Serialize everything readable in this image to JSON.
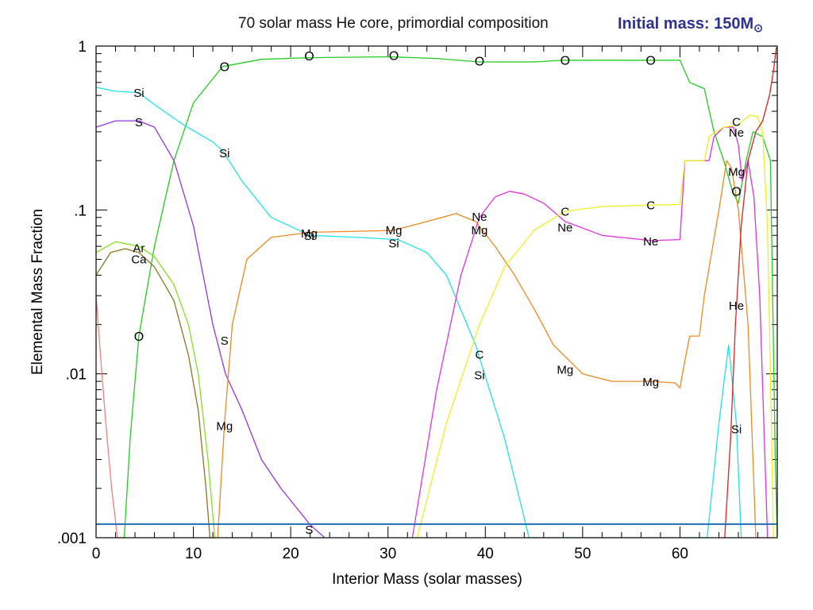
{
  "header": {
    "title": "70 solar mass He core, primordial composition",
    "mass_prefix": "Initial mass: 150M",
    "mass_suffix": "⊙"
  },
  "chart_data": {
    "type": "line",
    "title": "70 solar mass He core, primordial composition",
    "xlabel": "Interior Mass (solar masses)",
    "ylabel": "Elemental Mass Fraction",
    "xlim": [
      0,
      70
    ],
    "ylim": [
      0.001,
      1
    ],
    "yscale": "log",
    "x_ticks": [
      0,
      10,
      20,
      30,
      40,
      50,
      60
    ],
    "x_tick_labels": [
      "0",
      "10",
      "20",
      "30",
      "40",
      "50",
      "60"
    ],
    "y_ticks": [
      0.001,
      0.01,
      0.1,
      1
    ],
    "y_tick_labels": [
      ".001",
      ".01",
      ".1",
      "1"
    ],
    "series": [
      {
        "name": "O",
        "color": "#22cc22",
        "points": [
          [
            2.9,
            0.001
          ],
          [
            3.5,
            0.004
          ],
          [
            4.4,
            0.017
          ],
          [
            6,
            0.06
          ],
          [
            8,
            0.2
          ],
          [
            10,
            0.45
          ],
          [
            13,
            0.75
          ],
          [
            17,
            0.83
          ],
          [
            22,
            0.85
          ],
          [
            30,
            0.86
          ],
          [
            35,
            0.84
          ],
          [
            39.4,
            0.8
          ],
          [
            45,
            0.8
          ],
          [
            48,
            0.82
          ],
          [
            57,
            0.82
          ],
          [
            60,
            0.82
          ],
          [
            61,
            0.6
          ],
          [
            62.5,
            0.55
          ],
          [
            63.5,
            0.3
          ],
          [
            64.5,
            0.2
          ],
          [
            65.4,
            0.13
          ],
          [
            66,
            0.11
          ],
          [
            66.8,
            0.2
          ],
          [
            67.5,
            0.3
          ],
          [
            68.5,
            0.28
          ],
          [
            69.3,
            0.2
          ],
          [
            69.8,
            0.003
          ],
          [
            70,
            0.001
          ]
        ]
      },
      {
        "name": "Si",
        "color": "#22e0e8",
        "points": [
          [
            0,
            0.56
          ],
          [
            2,
            0.53
          ],
          [
            4.4,
            0.52
          ],
          [
            6,
            0.44
          ],
          [
            9,
            0.33
          ],
          [
            12,
            0.26
          ],
          [
            13,
            0.23
          ],
          [
            15,
            0.15
          ],
          [
            18,
            0.09
          ],
          [
            22,
            0.07
          ],
          [
            27,
            0.068
          ],
          [
            31,
            0.066
          ],
          [
            34,
            0.055
          ],
          [
            36,
            0.04
          ],
          [
            39,
            0.015
          ],
          [
            42,
            0.004
          ],
          [
            44.5,
            0.001
          ],
          [
            62.8,
            0.001
          ],
          [
            64,
            0.005
          ],
          [
            65,
            0.015
          ],
          [
            65.8,
            0.005
          ],
          [
            66.3,
            0.001
          ]
        ]
      },
      {
        "name": "S",
        "color": "#9933dd",
        "points": [
          [
            0,
            0.32
          ],
          [
            2,
            0.35
          ],
          [
            4.4,
            0.35
          ],
          [
            6,
            0.32
          ],
          [
            8,
            0.2
          ],
          [
            10,
            0.08
          ],
          [
            12,
            0.02
          ],
          [
            13.3,
            0.01
          ],
          [
            15,
            0.006
          ],
          [
            17,
            0.003
          ],
          [
            19,
            0.002
          ],
          [
            22,
            0.0012
          ],
          [
            23.5,
            0.001
          ]
        ]
      },
      {
        "name": "Ar",
        "color": "#88dd22",
        "points": [
          [
            0,
            0.055
          ],
          [
            2,
            0.064
          ],
          [
            4.4,
            0.06
          ],
          [
            6,
            0.052
          ],
          [
            8,
            0.035
          ],
          [
            9.5,
            0.02
          ],
          [
            10.5,
            0.01
          ],
          [
            11.5,
            0.003
          ],
          [
            12.2,
            0.001
          ]
        ]
      },
      {
        "name": "Ca",
        "color": "#887722",
        "points": [
          [
            0,
            0.04
          ],
          [
            1.5,
            0.055
          ],
          [
            3,
            0.058
          ],
          [
            4.4,
            0.055
          ],
          [
            6,
            0.045
          ],
          [
            8,
            0.028
          ],
          [
            9.5,
            0.013
          ],
          [
            10.5,
            0.006
          ],
          [
            11.3,
            0.002
          ],
          [
            11.7,
            0.001
          ]
        ]
      },
      {
        "name": "Mg",
        "color": "#ee8822",
        "points": [
          [
            12.5,
            0.001
          ],
          [
            13.2,
            0.005
          ],
          [
            14,
            0.02
          ],
          [
            15.5,
            0.05
          ],
          [
            18,
            0.068
          ],
          [
            22,
            0.073
          ],
          [
            30.5,
            0.075
          ],
          [
            34,
            0.085
          ],
          [
            37,
            0.095
          ],
          [
            39,
            0.085
          ],
          [
            41,
            0.06
          ],
          [
            43,
            0.04
          ],
          [
            45,
            0.025
          ],
          [
            47,
            0.015
          ],
          [
            50,
            0.01
          ],
          [
            53,
            0.009
          ],
          [
            57,
            0.009
          ],
          [
            59.5,
            0.0088
          ],
          [
            60,
            0.0082
          ],
          [
            60.5,
            0.012
          ],
          [
            61,
            0.017
          ],
          [
            62,
            0.017
          ],
          [
            62.5,
            0.03
          ],
          [
            64,
            0.1
          ],
          [
            64.8,
            0.2
          ],
          [
            65.3,
            0.18
          ],
          [
            66,
            0.1
          ],
          [
            67,
            0.02
          ],
          [
            67.8,
            0.001
          ]
        ]
      },
      {
        "name": "Ne",
        "color": "#dd33dd",
        "points": [
          [
            32.5,
            0.001
          ],
          [
            35,
            0.008
          ],
          [
            37.5,
            0.04
          ],
          [
            39.4,
            0.09
          ],
          [
            41,
            0.12
          ],
          [
            42.5,
            0.13
          ],
          [
            44,
            0.125
          ],
          [
            46,
            0.11
          ],
          [
            48.2,
            0.085
          ],
          [
            52,
            0.07
          ],
          [
            57,
            0.065
          ],
          [
            60,
            0.066
          ],
          [
            60.5,
            0.2
          ],
          [
            63,
            0.2
          ],
          [
            63.5,
            0.28
          ],
          [
            64.5,
            0.32
          ],
          [
            65.5,
            0.32
          ],
          [
            66,
            0.25
          ],
          [
            66.4,
            0.15
          ],
          [
            67,
            0.2
          ],
          [
            67.6,
            0.12
          ],
          [
            68.2,
            0.03
          ],
          [
            69,
            0.001
          ]
        ]
      },
      {
        "name": "C",
        "color": "#eeee22",
        "points": [
          [
            33,
            0.001
          ],
          [
            36,
            0.005
          ],
          [
            39.4,
            0.02
          ],
          [
            42,
            0.045
          ],
          [
            45,
            0.075
          ],
          [
            48.2,
            0.098
          ],
          [
            52,
            0.105
          ],
          [
            57,
            0.107
          ],
          [
            60,
            0.108
          ],
          [
            60.5,
            0.2
          ],
          [
            62.5,
            0.2
          ],
          [
            63,
            0.28
          ],
          [
            64.5,
            0.32
          ],
          [
            66,
            0.33
          ],
          [
            67.2,
            0.38
          ],
          [
            68,
            0.37
          ],
          [
            68.5,
            0.3
          ],
          [
            69,
            0.08
          ],
          [
            69.4,
            0.005
          ],
          [
            69.6,
            0.001
          ]
        ]
      },
      {
        "name": "He",
        "color": "#dd2222",
        "points": [
          [
            64.6,
            0.001
          ],
          [
            65.2,
            0.004
          ],
          [
            65.7,
            0.02
          ],
          [
            66.3,
            0.08
          ],
          [
            67,
            0.2
          ],
          [
            67.8,
            0.3
          ],
          [
            68.5,
            0.35
          ],
          [
            69.2,
            0.5
          ],
          [
            69.6,
            0.7
          ],
          [
            69.9,
            0.98
          ]
        ]
      },
      {
        "name": "",
        "color": "#f08080",
        "points": [
          [
            0,
            0.03
          ],
          [
            0.5,
            0.012
          ],
          [
            1,
            0.005
          ],
          [
            1.6,
            0.002
          ],
          [
            2.2,
            0.001
          ]
        ]
      },
      {
        "name": "",
        "color": "#1e6eb4",
        "points": [
          [
            0,
            0.00121
          ],
          [
            70,
            0.00121
          ]
        ]
      }
    ],
    "labels": [
      {
        "text": "O",
        "x": 4.4,
        "y": 0.0168
      },
      {
        "text": "O",
        "x": 13.2,
        "y": 0.745
      },
      {
        "text": "O",
        "x": 21.9,
        "y": 0.865
      },
      {
        "text": "O",
        "x": 30.6,
        "y": 0.868
      },
      {
        "text": "O",
        "x": 39.4,
        "y": 0.803
      },
      {
        "text": "O",
        "x": 48.2,
        "y": 0.815
      },
      {
        "text": "O",
        "x": 57.0,
        "y": 0.815
      },
      {
        "text": "O",
        "x": 65.8,
        "y": 0.129
      },
      {
        "text": "Si",
        "x": 4.4,
        "y": 0.517
      },
      {
        "text": "Si",
        "x": 13.2,
        "y": 0.222
      },
      {
        "text": "Si",
        "x": 21.9,
        "y": 0.0695
      },
      {
        "text": "Si",
        "x": 30.6,
        "y": 0.0625
      },
      {
        "text": "Si",
        "x": 39.4,
        "y": 0.0098
      },
      {
        "text": "Si",
        "x": 65.8,
        "y": 0.0046
      },
      {
        "text": "S",
        "x": 4.4,
        "y": 0.342
      },
      {
        "text": "S",
        "x": 13.2,
        "y": 0.0159
      },
      {
        "text": "S",
        "x": 21.9,
        "y": 0.00112
      },
      {
        "text": "Ar",
        "x": 4.4,
        "y": 0.0585
      },
      {
        "text": "Ca",
        "x": 4.4,
        "y": 0.05
      },
      {
        "text": "Mg",
        "x": 13.2,
        "y": 0.0048
      },
      {
        "text": "Mg",
        "x": 21.9,
        "y": 0.072
      },
      {
        "text": "Mg",
        "x": 30.6,
        "y": 0.075
      },
      {
        "text": "Mg",
        "x": 39.4,
        "y": 0.075
      },
      {
        "text": "Mg",
        "x": 48.2,
        "y": 0.0106
      },
      {
        "text": "Mg",
        "x": 57.0,
        "y": 0.0089
      },
      {
        "text": "Mg",
        "x": 65.8,
        "y": 0.171
      },
      {
        "text": "Ne",
        "x": 39.4,
        "y": 0.091
      },
      {
        "text": "Ne",
        "x": 48.2,
        "y": 0.078
      },
      {
        "text": "Ne",
        "x": 57.0,
        "y": 0.0644
      },
      {
        "text": "Ne",
        "x": 65.8,
        "y": 0.297
      },
      {
        "text": "C",
        "x": 39.4,
        "y": 0.0131
      },
      {
        "text": "C",
        "x": 48.2,
        "y": 0.0976
      },
      {
        "text": "C",
        "x": 57.0,
        "y": 0.107
      },
      {
        "text": "C",
        "x": 65.8,
        "y": 0.345
      },
      {
        "text": "He",
        "x": 65.8,
        "y": 0.026
      }
    ]
  }
}
